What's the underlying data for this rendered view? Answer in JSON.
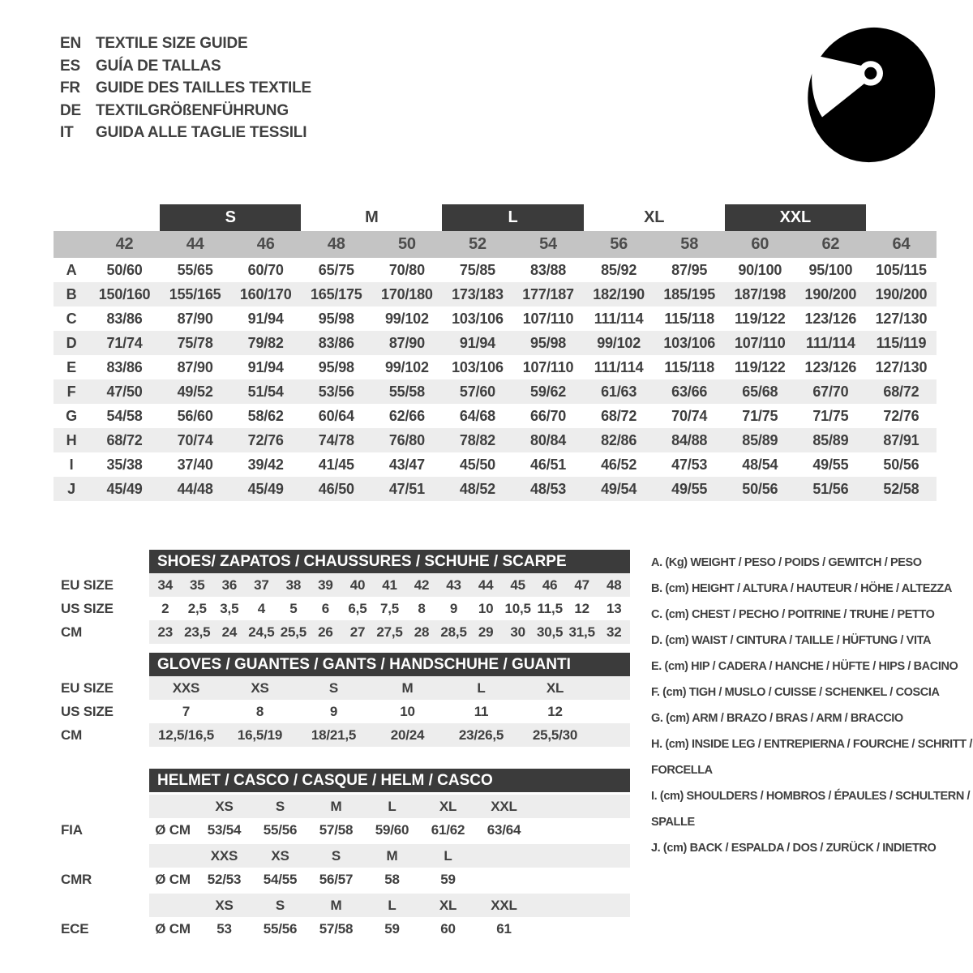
{
  "header": {
    "languages": [
      {
        "code": "EN",
        "title": "TEXTILE SIZE GUIDE"
      },
      {
        "code": "ES",
        "title": "GUÍA DE TALLAS"
      },
      {
        "code": "FR",
        "title": "GUIDE DES TAILLES TEXTILE"
      },
      {
        "code": "DE",
        "title": "TEXTILGRÖßENFÜHRUNG"
      },
      {
        "code": "IT",
        "title": "GUIDA ALLE TAGLIE TESSILI"
      }
    ],
    "icon": "racing-helmet-icon"
  },
  "textile_table": {
    "size_bands": [
      {
        "label": "S",
        "style": "dark"
      },
      {
        "label": "M",
        "style": "plain"
      },
      {
        "label": "L",
        "style": "dark"
      },
      {
        "label": "XL",
        "style": "plain"
      },
      {
        "label": "XXL",
        "style": "dark"
      }
    ],
    "sizes": [
      "42",
      "44",
      "46",
      "48",
      "50",
      "52",
      "54",
      "56",
      "58",
      "60",
      "62",
      "64"
    ],
    "rows": [
      {
        "label": "A",
        "values": [
          "50/60",
          "55/65",
          "60/70",
          "65/75",
          "70/80",
          "75/85",
          "83/88",
          "85/92",
          "87/95",
          "90/100",
          "95/100",
          "105/115"
        ]
      },
      {
        "label": "B",
        "values": [
          "150/160",
          "155/165",
          "160/170",
          "165/175",
          "170/180",
          "173/183",
          "177/187",
          "182/190",
          "185/195",
          "187/198",
          "190/200",
          "190/200"
        ]
      },
      {
        "label": "C",
        "values": [
          "83/86",
          "87/90",
          "91/94",
          "95/98",
          "99/102",
          "103/106",
          "107/110",
          "111/114",
          "115/118",
          "119/122",
          "123/126",
          "127/130"
        ]
      },
      {
        "label": "D",
        "values": [
          "71/74",
          "75/78",
          "79/82",
          "83/86",
          "87/90",
          "91/94",
          "95/98",
          "99/102",
          "103/106",
          "107/110",
          "111/114",
          "115/119"
        ]
      },
      {
        "label": "E",
        "values": [
          "83/86",
          "87/90",
          "91/94",
          "95/98",
          "99/102",
          "103/106",
          "107/110",
          "111/114",
          "115/118",
          "119/122",
          "123/126",
          "127/130"
        ]
      },
      {
        "label": "F",
        "values": [
          "47/50",
          "49/52",
          "51/54",
          "53/56",
          "55/58",
          "57/60",
          "59/62",
          "61/63",
          "63/66",
          "65/68",
          "67/70",
          "68/72"
        ]
      },
      {
        "label": "G",
        "values": [
          "54/58",
          "56/60",
          "58/62",
          "60/64",
          "62/66",
          "64/68",
          "66/70",
          "68/72",
          "70/74",
          "71/75",
          "71/75",
          "72/76"
        ]
      },
      {
        "label": "H",
        "values": [
          "68/72",
          "70/74",
          "72/76",
          "74/78",
          "76/80",
          "78/82",
          "80/84",
          "82/86",
          "84/88",
          "85/89",
          "85/89",
          "87/91"
        ]
      },
      {
        "label": "I",
        "values": [
          "35/38",
          "37/40",
          "39/42",
          "41/45",
          "43/47",
          "45/50",
          "46/51",
          "46/52",
          "47/53",
          "48/54",
          "49/55",
          "50/56"
        ]
      },
      {
        "label": "J",
        "values": [
          "45/49",
          "44/48",
          "45/49",
          "46/50",
          "47/51",
          "48/52",
          "48/53",
          "49/54",
          "49/55",
          "50/56",
          "51/56",
          "52/58"
        ]
      }
    ]
  },
  "shoes_table": {
    "title": "SHOES/ ZAPATOS / CHAUSSURES / SCHUHE / SCARPE",
    "rows": [
      {
        "label": "EU SIZE",
        "shaded": true,
        "values": [
          "34",
          "35",
          "36",
          "37",
          "38",
          "39",
          "40",
          "41",
          "42",
          "43",
          "44",
          "45",
          "46",
          "47",
          "48"
        ]
      },
      {
        "label": "US SIZE",
        "shaded": false,
        "values": [
          "2",
          "2,5",
          "3,5",
          "4",
          "5",
          "6",
          "6,5",
          "7,5",
          "8",
          "9",
          "10",
          "10,5",
          "11,5",
          "12",
          "13"
        ]
      },
      {
        "label": "CM",
        "shaded": true,
        "values": [
          "23",
          "23,5",
          "24",
          "24,5",
          "25,5",
          "26",
          "27",
          "27,5",
          "28",
          "28,5",
          "29",
          "30",
          "30,5",
          "31,5",
          "32"
        ]
      }
    ]
  },
  "gloves_table": {
    "title": "GLOVES / GUANTES / GANTS / HANDSCHUHE / GUANTI",
    "rows": [
      {
        "label": "EU SIZE",
        "shaded": true,
        "values": [
          "XXS",
          "XS",
          "S",
          "M",
          "L",
          "XL"
        ]
      },
      {
        "label": "US SIZE",
        "shaded": false,
        "values": [
          "7",
          "8",
          "9",
          "10",
          "11",
          "12"
        ]
      },
      {
        "label": "CM",
        "shaded": true,
        "values": [
          "12,5/16,5",
          "16,5/19",
          "18/21,5",
          "20/24",
          "23/26,5",
          "25,5/30"
        ]
      }
    ]
  },
  "helmet_table": {
    "title": "HELMET / CASCO / CASQUE / HELM / CASCO",
    "sections": [
      {
        "label": "FIA",
        "unit": "Ø CM",
        "sizes": [
          "XS",
          "S",
          "M",
          "L",
          "XL",
          "XXL"
        ],
        "values": [
          "53/54",
          "55/56",
          "57/58",
          "59/60",
          "61/62",
          "63/64"
        ]
      },
      {
        "label": "CMR",
        "unit": "Ø CM",
        "sizes": [
          "XXS",
          "XS",
          "S",
          "M",
          "L",
          ""
        ],
        "values": [
          "52/53",
          "54/55",
          "56/57",
          "58",
          "59",
          ""
        ]
      },
      {
        "label": "ECE",
        "unit": "Ø CM",
        "sizes": [
          "XS",
          "S",
          "M",
          "L",
          "XL",
          "XXL"
        ],
        "values": [
          "53",
          "55/56",
          "57/58",
          "59",
          "60",
          "61"
        ]
      }
    ]
  },
  "legend": {
    "items": [
      "A. (Kg) WEIGHT / PESO / POIDS / GEWITCH / PESO",
      "B. (cm) HEIGHT / ALTURA / HAUTEUR / HÖHE / ALTEZZA",
      "C. (cm) CHEST / PECHO / POITRINE / TRUHE / PETTO",
      "D. (cm) WAIST / CINTURA / TAILLE / HÜFTUNG / VITA",
      "E. (cm) HIP / CADERA / HANCHE / HÜFTE / HIPS / BACINO",
      "F. (cm) TIGH / MUSLO / CUISSE / SCHENKEL / COSCIA",
      "G. (cm) ARM / BRAZO / BRAS / ARM / BRACCIO",
      "H. (cm) INSIDE LEG / ENTREPIERNA / FOURCHE / SCHRITT / FORCELLA",
      "I. (cm) SHOULDERS / HOMBROS / ÉPAULES / SCHULTERN / SPALLE",
      "J. (cm) BACK / ESPALDA / DOS / ZURÜCK / INDIETRO"
    ]
  },
  "colors": {
    "bar_bg": "#3b3b3b",
    "band_bg": "#c4c4c4",
    "stripe_bg": "#ededed",
    "text": "#3f3f3f",
    "icon": "#000000"
  }
}
